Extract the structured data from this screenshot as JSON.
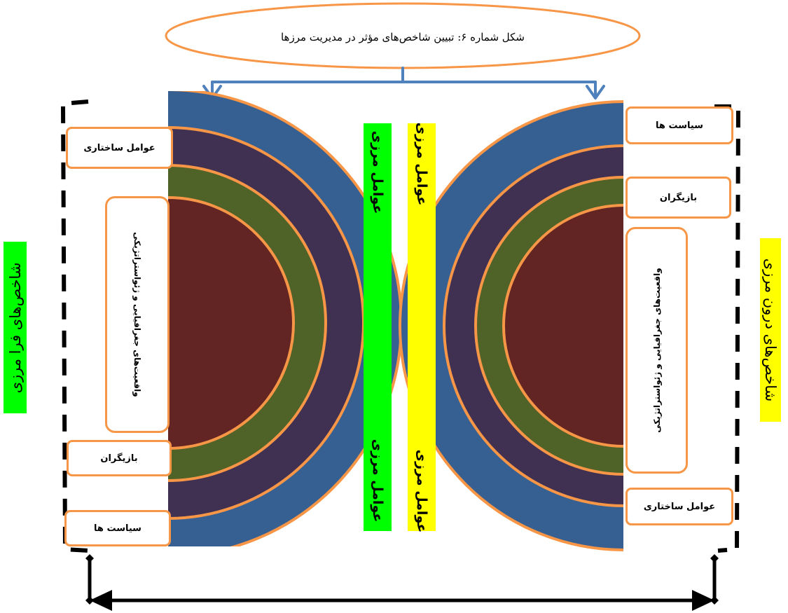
{
  "title": "شکل شماره ۶: تبیین شاخص‌های مؤثر در مدیریت مرزها",
  "colors": {
    "outline": "#f79646",
    "ring_outer": "#376092",
    "ring_second": "#403152",
    "ring_third": "#4f6228",
    "core": "#632523",
    "arrow": "#4f81bd",
    "green_bar": "#00ff00",
    "yellow_bar": "#ffff00"
  },
  "left_side": {
    "vertical_label": "شاخص‌های فرا مرزی",
    "structural": "عوامل ساختاری",
    "realities": "واقعیت‌های جغرافیایی و ژئواستراتژیکی",
    "actors": "بازیگران",
    "policies": "سیاست ها"
  },
  "right_side": {
    "vertical_label": "شاخص‌های درون مرزی",
    "policies": "سیاست ها",
    "actors": "بازیگران",
    "realities": "واقعیت‌های جغرافیایی و ژئواستراتژیکی",
    "structural": "عوامل ساختاری"
  },
  "center": {
    "green_top": "عوامل مرزی",
    "green_bottom": "عوامل مرزی",
    "yellow_top": "عوامل مرزی",
    "yellow_bottom": "عوامل مرزی"
  }
}
